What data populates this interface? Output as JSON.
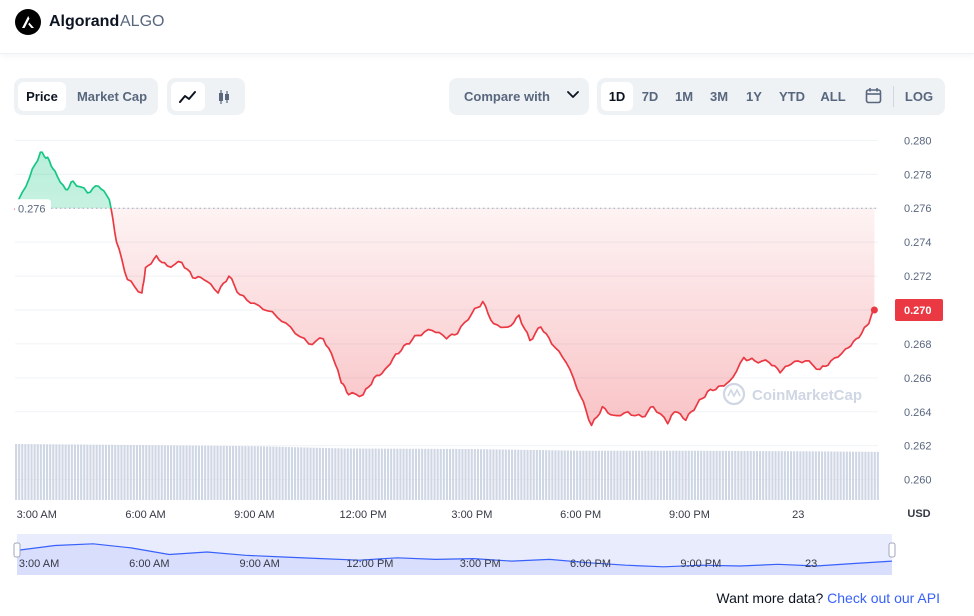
{
  "header": {
    "name": "Algorand",
    "symbol": "ALGO"
  },
  "controls": {
    "type_tabs": [
      "Price",
      "Market Cap"
    ],
    "active_type": "Price",
    "chart_modes": [
      "line-chart-icon",
      "candlestick-icon"
    ],
    "compare_label": "Compare with",
    "ranges": [
      "1D",
      "7D",
      "1M",
      "3M",
      "1Y",
      "YTD",
      "ALL"
    ],
    "active_range": "1D",
    "log_label": "LOG"
  },
  "colors": {
    "up": "#16c784",
    "down": "#ea3943",
    "volume": "#cfd6e4",
    "navigator_fill": "#e9ecfd",
    "navigator_line": "#3861fb",
    "link": "#3861fb"
  },
  "watermark": "CoinMarketCap",
  "chart_data": {
    "type": "line",
    "currency": "USD",
    "open_price": 0.276,
    "open_label": "0.276",
    "last_price": 0.27,
    "last_label": "0.270",
    "ylim": [
      0.2588,
      0.2812
    ],
    "yticks": [
      "0.280",
      "0.278",
      "0.276",
      "0.274",
      "0.272",
      "0.270",
      "0.268",
      "0.266",
      "0.264",
      "0.262",
      "0.260"
    ],
    "xlim": [
      2.4,
      26.2
    ],
    "xticks": [
      {
        "label": "3:00 AM",
        "hour": 3
      },
      {
        "label": "6:00 AM",
        "hour": 6
      },
      {
        "label": "9:00 AM",
        "hour": 9
      },
      {
        "label": "12:00 PM",
        "hour": 12
      },
      {
        "label": "3:00 PM",
        "hour": 15
      },
      {
        "label": "6:00 PM",
        "hour": 18
      },
      {
        "label": "9:00 PM",
        "hour": 21
      },
      {
        "label": "23",
        "hour": 24
      }
    ],
    "x_axis_unit": "USD",
    "series": [
      {
        "hours": [
          2.4,
          2.8,
          3.1,
          3.3,
          3.5,
          3.8,
          4.0,
          4.4,
          4.7,
          5.0,
          5.2,
          5.5,
          5.9,
          6.0,
          6.3,
          6.6,
          7.0,
          7.3,
          7.6,
          8.0,
          8.3,
          8.6,
          9.0,
          9.5,
          10.0,
          10.5,
          10.9,
          11.2,
          11.4,
          11.6,
          12.0,
          12.3,
          12.6,
          12.9,
          13.2,
          13.5,
          13.9,
          14.3,
          14.6,
          15.0,
          15.3,
          15.6,
          16.0,
          16.3,
          16.6,
          16.9,
          17.2,
          17.6,
          18.0,
          18.3,
          18.6,
          18.9,
          19.3,
          19.7,
          20.0,
          20.4,
          20.6,
          20.9,
          21.2,
          21.5,
          21.8,
          22.1,
          22.5,
          22.8,
          23.2,
          23.5,
          23.8,
          24.2,
          24.6,
          24.9,
          25.3,
          25.6,
          25.9,
          26.1
        ],
        "values": [
          0.2759,
          0.2778,
          0.2793,
          0.279,
          0.2782,
          0.2771,
          0.2776,
          0.2769,
          0.2773,
          0.2765,
          0.274,
          0.2718,
          0.271,
          0.2725,
          0.2732,
          0.2726,
          0.2728,
          0.2719,
          0.2718,
          0.271,
          0.272,
          0.2709,
          0.2704,
          0.2699,
          0.269,
          0.268,
          0.2683,
          0.267,
          0.2657,
          0.265,
          0.265,
          0.266,
          0.2665,
          0.2674,
          0.268,
          0.2685,
          0.2688,
          0.2683,
          0.2686,
          0.2698,
          0.2705,
          0.2692,
          0.269,
          0.2697,
          0.2682,
          0.269,
          0.268,
          0.2669,
          0.2649,
          0.2632,
          0.2643,
          0.2638,
          0.264,
          0.2637,
          0.2643,
          0.2633,
          0.264,
          0.2635,
          0.2644,
          0.2652,
          0.2655,
          0.2658,
          0.2672,
          0.267,
          0.2669,
          0.2663,
          0.2668,
          0.267,
          0.2665,
          0.267,
          0.2677,
          0.2683,
          0.2691,
          0.27
        ]
      }
    ],
    "volume": {
      "hours": [
        2.4,
        6.0,
        9.0,
        11.5,
        15.0,
        18.0,
        21.0,
        24.0,
        26.2
      ],
      "values": [
        1.0,
        0.98,
        0.96,
        0.92,
        0.91,
        0.88,
        0.88,
        0.87,
        0.86
      ]
    },
    "navigator": {
      "values": [
        0.6,
        0.72,
        0.76,
        0.66,
        0.5,
        0.56,
        0.48,
        0.44,
        0.4,
        0.36,
        0.42,
        0.38,
        0.4,
        0.34,
        0.38,
        0.3,
        0.24,
        0.2,
        0.24,
        0.22,
        0.26,
        0.22,
        0.28,
        0.34
      ]
    }
  },
  "footer": {
    "prompt": "Want more data?",
    "link": "Check out our API"
  }
}
